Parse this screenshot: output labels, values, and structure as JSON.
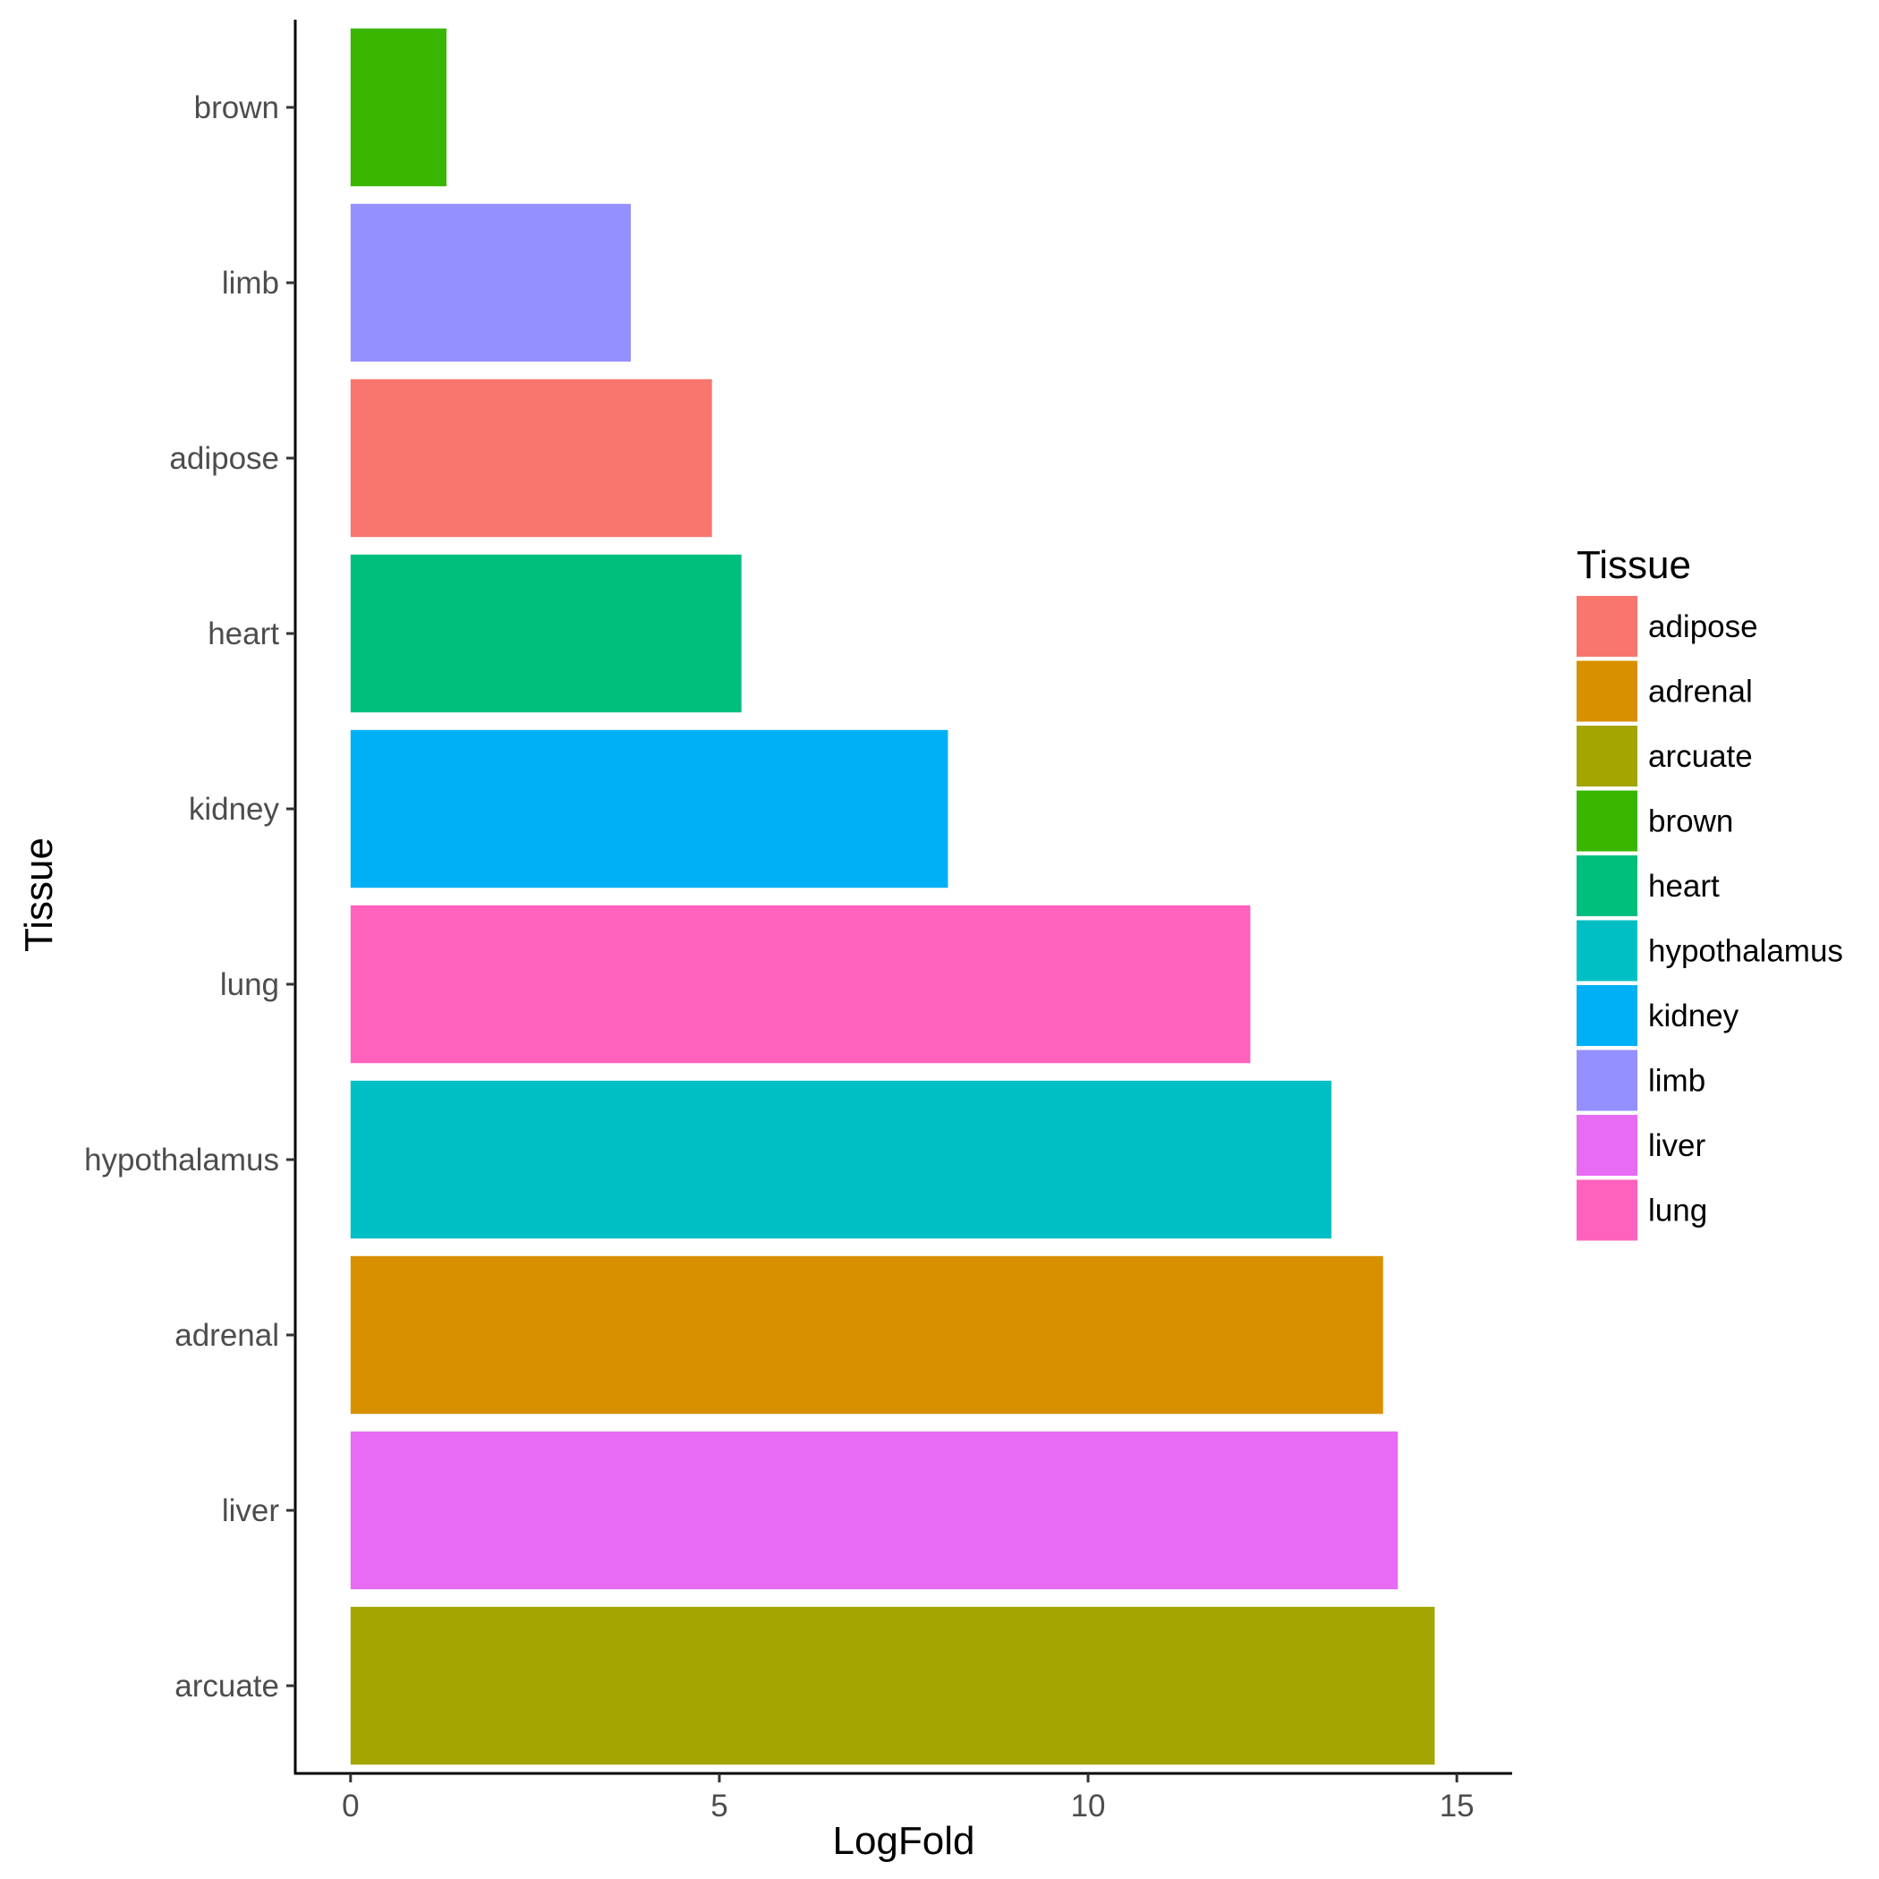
{
  "chart_data": {
    "type": "bar",
    "orientation": "horizontal",
    "xlabel": "LogFold",
    "ylabel": "Tissue",
    "xlim": [
      -0.75,
      15.75
    ],
    "xticks": [
      0,
      5,
      10,
      15
    ],
    "grid": false,
    "legend_position": "right",
    "legend_title": "Tissue",
    "categories": [
      "brown",
      "limb",
      "adipose",
      "heart",
      "kidney",
      "lung",
      "hypothalamus",
      "adrenal",
      "liver",
      "arcuate"
    ],
    "values": [
      1.3,
      3.8,
      4.9,
      5.3,
      8.1,
      12.2,
      13.3,
      14.0,
      14.2,
      14.7
    ],
    "legend_entries": [
      {
        "label": "adipose",
        "color": "#F8766D"
      },
      {
        "label": "adrenal",
        "color": "#D89000"
      },
      {
        "label": "arcuate",
        "color": "#A3A500"
      },
      {
        "label": "brown",
        "color": "#39B600"
      },
      {
        "label": "heart",
        "color": "#00BF7D"
      },
      {
        "label": "hypothalamus",
        "color": "#00BFC4"
      },
      {
        "label": "kidney",
        "color": "#00B0F6"
      },
      {
        "label": "limb",
        "color": "#9590FF"
      },
      {
        "label": "liver",
        "color": "#E76BF3"
      },
      {
        "label": "lung",
        "color": "#FF62BC"
      }
    ]
  }
}
